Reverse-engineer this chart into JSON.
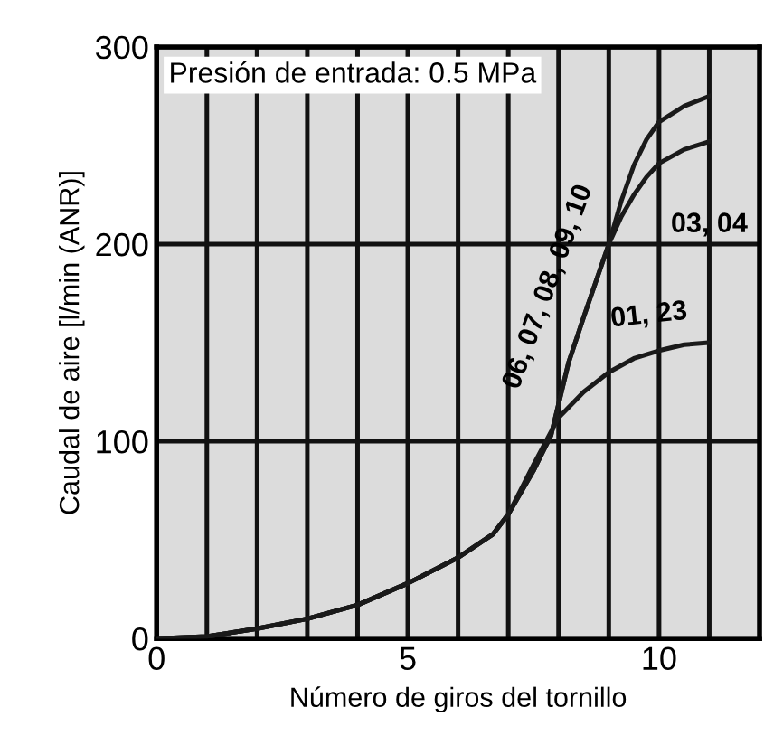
{
  "chart_data": {
    "type": "line",
    "xlabel": "Número de giros del tornillo",
    "ylabel": "Caudal de aire [l/min (ANR)]",
    "annotations": [
      "Presión de entrada: 0.5 MPa"
    ],
    "series": [
      {
        "name": "06, 07, 08, 09, 10",
        "color": "#1a1a1a",
        "x": [
          0,
          1,
          2,
          3,
          4,
          5,
          6,
          6.7,
          7,
          7.5,
          7.85,
          8.2,
          8.5,
          9,
          9.25,
          9.5,
          9.75,
          10,
          10.5,
          11
        ],
        "values": [
          0,
          1,
          5,
          10,
          17,
          28,
          41,
          53,
          63,
          85,
          103,
          140,
          163,
          200,
          222,
          240,
          253,
          262,
          270,
          275
        ]
      },
      {
        "name": "03, 04",
        "color": "#1a1a1a",
        "x": [
          0,
          1,
          2,
          3,
          4,
          5,
          6,
          6.7,
          7,
          7.5,
          7.85,
          8.2,
          8.5,
          9,
          9.25,
          9.5,
          9.75,
          10,
          10.5,
          11
        ],
        "values": [
          0,
          1,
          5,
          10,
          17,
          28,
          41,
          53,
          63,
          85,
          103,
          140,
          163,
          200,
          214,
          225,
          234,
          241,
          248,
          252
        ]
      },
      {
        "name": "01, 23",
        "color": "#1a1a1a",
        "x": [
          0,
          1,
          2,
          3,
          4,
          5,
          6,
          6.7,
          7,
          7.5,
          8,
          8.5,
          9,
          9.5,
          10,
          10.5,
          11
        ],
        "values": [
          0,
          1,
          5,
          10,
          17,
          28,
          41,
          53,
          63,
          88,
          112,
          125,
          135,
          142,
          146,
          149,
          150
        ]
      }
    ],
    "xlim": [
      0,
      12
    ],
    "ylim": [
      0,
      300
    ],
    "xticks": [
      0,
      {
        "value": 1,
        "label": null
      },
      {
        "value": 2,
        "label": null
      },
      {
        "value": 3,
        "label": null
      },
      {
        "value": 4,
        "label": null
      },
      5,
      {
        "value": 6,
        "label": null
      },
      {
        "value": 7,
        "label": null
      },
      {
        "value": 8,
        "label": null
      },
      {
        "value": 9,
        "label": null
      },
      10,
      {
        "value": 11,
        "label": null
      }
    ],
    "yticks": [
      0,
      100,
      200,
      300
    ],
    "grid": true,
    "legend": false,
    "marker": "none",
    "line_style": "solid"
  }
}
